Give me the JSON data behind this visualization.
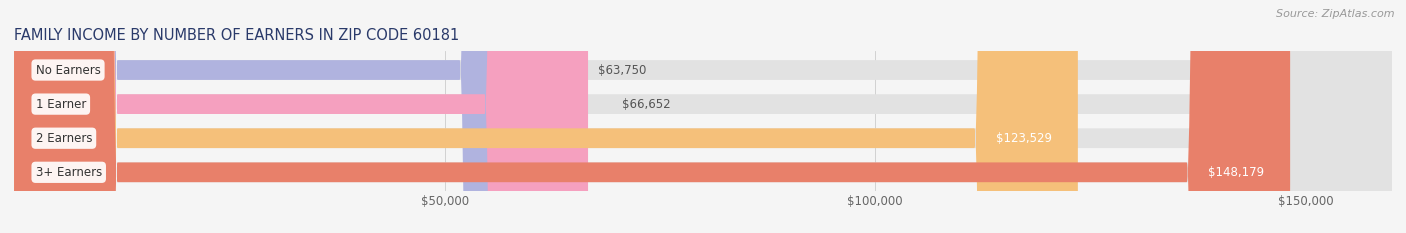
{
  "title": "FAMILY INCOME BY NUMBER OF EARNERS IN ZIP CODE 60181",
  "source": "Source: ZipAtlas.com",
  "categories": [
    "No Earners",
    "1 Earner",
    "2 Earners",
    "3+ Earners"
  ],
  "values": [
    63750,
    66652,
    123529,
    148179
  ],
  "labels": [
    "$63,750",
    "$66,652",
    "$123,529",
    "$148,179"
  ],
  "bar_colors": [
    "#b0b3df",
    "#f5a0bf",
    "#f5c07a",
    "#e8806a"
  ],
  "background_color": "#f5f5f5",
  "bar_bg_color": "#e2e2e2",
  "label_colors": [
    "#555555",
    "#555555",
    "#ffffff",
    "#ffffff"
  ],
  "xmin": 0,
  "xmax": 160000,
  "xticks": [
    50000,
    100000,
    150000
  ],
  "xtick_labels": [
    "$50,000",
    "$100,000",
    "$150,000"
  ],
  "title_fontsize": 10.5,
  "source_fontsize": 8,
  "bar_label_fontsize": 8.5,
  "category_fontsize": 8.5,
  "tick_fontsize": 8.5
}
